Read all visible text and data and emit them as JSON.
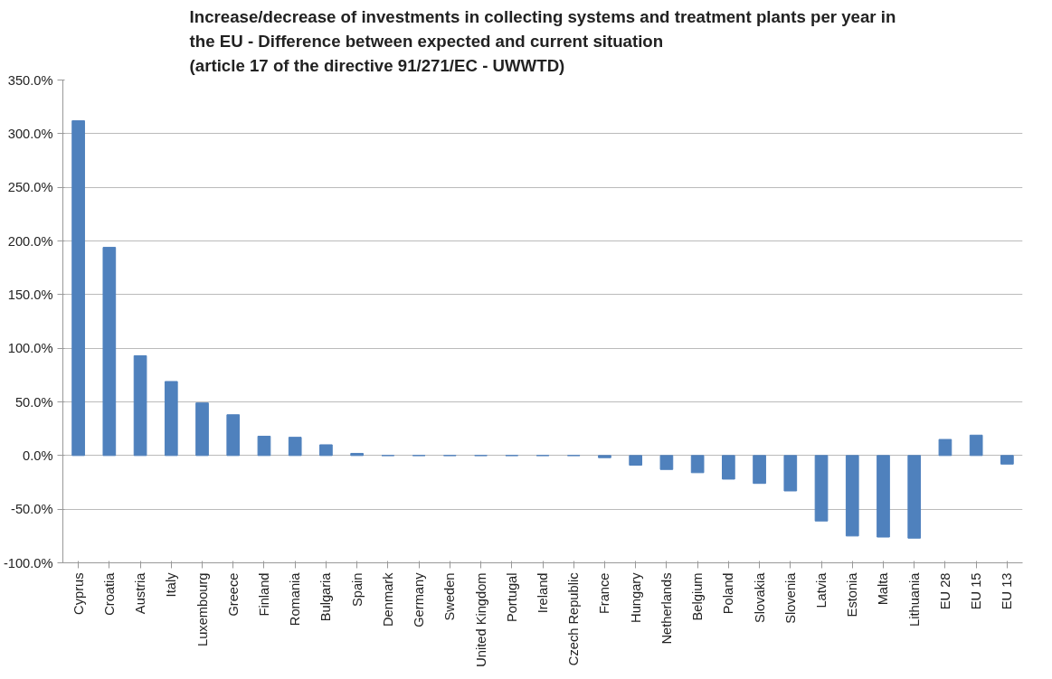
{
  "chart_data": {
    "type": "bar",
    "title": "Increase/decrease of investments in collecting systems and treatment plants per year in\nthe EU - Difference between expected and current situation\n(article 17 of the directive 91/271/EC - UWWTD)",
    "categories": [
      "Cyprus",
      "Croatia",
      "Austria",
      "Italy",
      "Luxembourg",
      "Greece",
      "Finland",
      "Romania",
      "Bulgaria",
      "Spain",
      "Denmark",
      "Germany",
      "Sweden",
      "United Kingdom",
      "Portugal",
      "Ireland",
      "Czech Republic",
      "France",
      "Hungary",
      "Netherlands",
      "Belgium",
      "Poland",
      "Slovakia",
      "Slovenia",
      "Latvia",
      "Estonia",
      "Malta",
      "Lithuania",
      "EU 28",
      "EU 15",
      "EU 13"
    ],
    "values": [
      312,
      194,
      93,
      69,
      49,
      38,
      18,
      17,
      10,
      2,
      0,
      0,
      0,
      0,
      0,
      0,
      0,
      -2,
      -9,
      -13,
      -16,
      -22,
      -26,
      -33,
      -61,
      -75,
      -76,
      -77,
      15,
      19,
      -8
    ],
    "color": "#4f81bd",
    "ylim": [
      -100,
      350
    ],
    "yticks": [
      {
        "value": -100,
        "label": "-100.0%"
      },
      {
        "value": -50,
        "label": "-50.0%"
      },
      {
        "value": 0,
        "label": "0.0%"
      },
      {
        "value": 50,
        "label": "50.0%"
      },
      {
        "value": 100,
        "label": "100.0%"
      },
      {
        "value": 150,
        "label": "150.0%"
      },
      {
        "value": 200,
        "label": "200.0%"
      },
      {
        "value": 250,
        "label": "250.0%"
      },
      {
        "value": 300,
        "label": "300.0%"
      },
      {
        "value": 350,
        "label": "350.0%"
      }
    ],
    "grid": "y"
  }
}
